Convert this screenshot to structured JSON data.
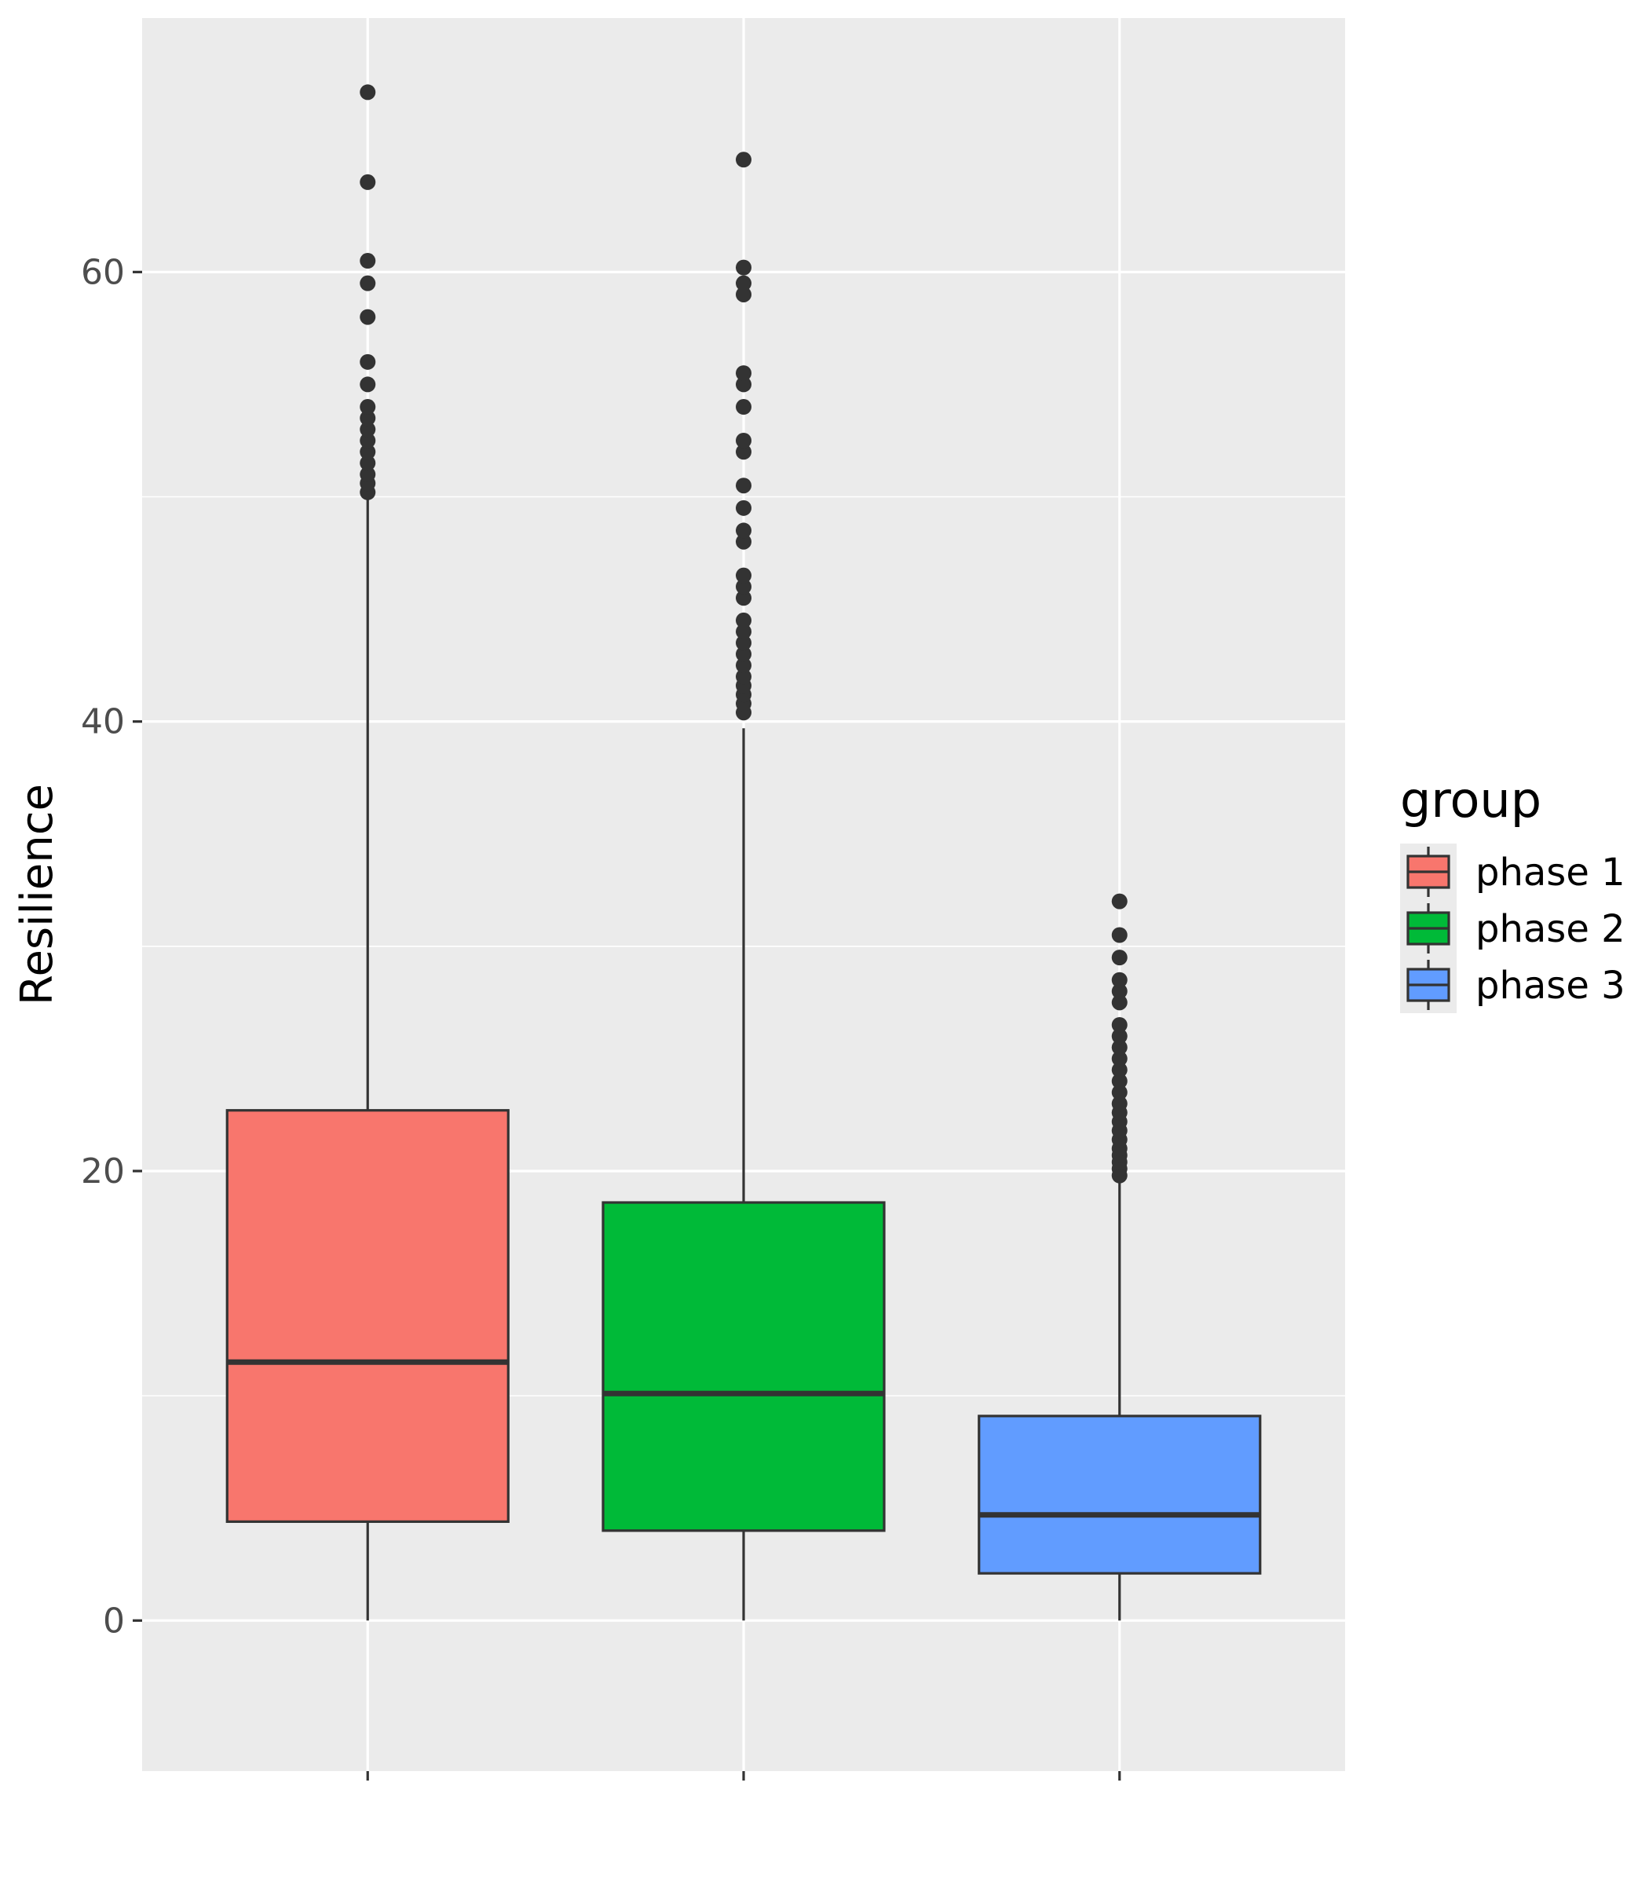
{
  "chart_data": {
    "type": "boxplot",
    "ylabel": "Resilience",
    "xlabel": "",
    "ylim": [
      -6.7,
      71.3
    ],
    "yticks": [
      0,
      20,
      40,
      60
    ],
    "grid": true,
    "legend": {
      "title": "group",
      "position": "right"
    },
    "categories": [
      "phase 1",
      "phase 2",
      "phase 3"
    ],
    "series": [
      {
        "name": "phase 1",
        "color": "#F8766D",
        "whisker_low": 0,
        "q1": 4.4,
        "median": 11.5,
        "q3": 22.7,
        "whisker_high": 50.0,
        "outliers": [
          50.2,
          50.6,
          51.0,
          51.5,
          52.0,
          52.5,
          53.0,
          53.5,
          54.0,
          55.0,
          56.0,
          58.0,
          59.5,
          60.5,
          64.0,
          68.0
        ]
      },
      {
        "name": "phase 2",
        "color": "#00BA38",
        "whisker_low": 0,
        "q1": 4.0,
        "median": 10.1,
        "q3": 18.6,
        "whisker_high": 39.7,
        "outliers": [
          40.4,
          40.8,
          41.2,
          41.6,
          42.0,
          42.5,
          43.0,
          43.5,
          44.0,
          44.5,
          45.5,
          46.0,
          46.5,
          48.0,
          48.5,
          49.5,
          50.5,
          52.0,
          52.5,
          54.0,
          55.0,
          55.5,
          59.0,
          59.5,
          60.2,
          65.0
        ]
      },
      {
        "name": "phase 3",
        "color": "#619CFF",
        "whisker_low": 0,
        "q1": 2.1,
        "median": 4.7,
        "q3": 9.1,
        "whisker_high": 19.6,
        "outliers": [
          19.8,
          20.1,
          20.4,
          20.7,
          21.0,
          21.4,
          21.8,
          22.2,
          22.6,
          23.0,
          23.5,
          24.0,
          24.5,
          25.0,
          25.5,
          26.0,
          26.5,
          27.5,
          28.0,
          28.5,
          29.5,
          30.5,
          32.0
        ]
      }
    ]
  }
}
